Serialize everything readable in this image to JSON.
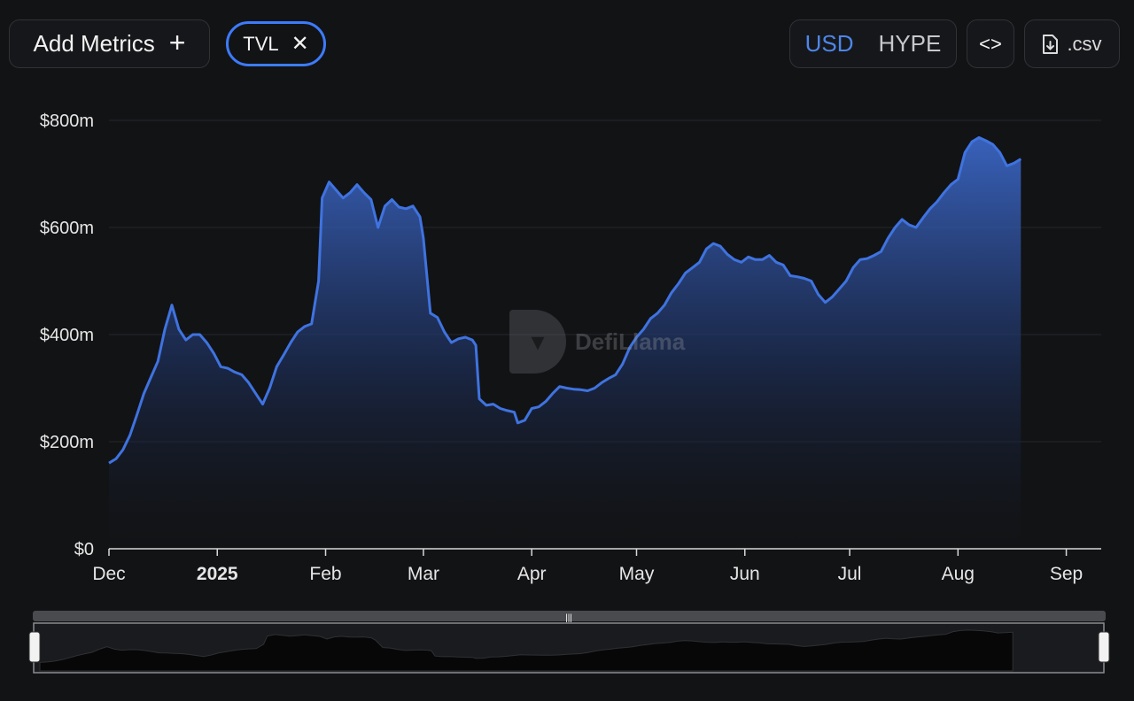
{
  "toolbar": {
    "add_metrics_label": "Add Metrics",
    "add_icon": "+",
    "metric_chip": "TVL",
    "remove_icon": "✕",
    "currency_options": [
      "USD",
      "HYPE"
    ],
    "currency_selected": "USD",
    "embed_icon": "<>",
    "csv_label": ".csv"
  },
  "watermark": {
    "text": "DefiLlama"
  },
  "colors": {
    "accent": "#3d7bfd",
    "line": "#3f73e0",
    "background": "#121315"
  },
  "chart_data": {
    "type": "area",
    "title": "",
    "xlabel": "",
    "ylabel": "",
    "ylim": [
      0,
      800
    ],
    "y_ticks": [
      "$0",
      "$200m",
      "$400m",
      "$600m",
      "$800m"
    ],
    "y_tick_values": [
      0,
      200,
      400,
      600,
      800
    ],
    "x_ticks": [
      "Dec",
      "2025",
      "Feb",
      "Mar",
      "Apr",
      "May",
      "Jun",
      "Jul",
      "Aug",
      "Sep"
    ],
    "x_tick_dates": [
      "2024-12-01",
      "2025-01-01",
      "2025-02-01",
      "2025-03-01",
      "2025-04-01",
      "2025-05-01",
      "2025-06-01",
      "2025-07-01",
      "2025-08-01",
      "2025-09-01"
    ],
    "x_range": [
      "2024-12-01",
      "2025-09-11"
    ],
    "grid": true,
    "legend": false,
    "series": [
      {
        "name": "TVL",
        "unit": "USD millions",
        "points": [
          [
            "2024-12-01",
            160
          ],
          [
            "2024-12-03",
            168
          ],
          [
            "2024-12-05",
            185
          ],
          [
            "2024-12-07",
            212
          ],
          [
            "2024-12-09",
            250
          ],
          [
            "2024-12-11",
            290
          ],
          [
            "2024-12-13",
            320
          ],
          [
            "2024-12-15",
            350
          ],
          [
            "2024-12-17",
            410
          ],
          [
            "2024-12-19",
            455
          ],
          [
            "2024-12-21",
            410
          ],
          [
            "2024-12-23",
            390
          ],
          [
            "2024-12-25",
            400
          ],
          [
            "2024-12-27",
            400
          ],
          [
            "2024-12-29",
            385
          ],
          [
            "2024-12-31",
            365
          ],
          [
            "2025-01-02",
            340
          ],
          [
            "2025-01-04",
            337
          ],
          [
            "2025-01-06",
            330
          ],
          [
            "2025-01-08",
            325
          ],
          [
            "2025-01-10",
            310
          ],
          [
            "2025-01-12",
            290
          ],
          [
            "2025-01-14",
            270
          ],
          [
            "2025-01-16",
            300
          ],
          [
            "2025-01-18",
            340
          ],
          [
            "2025-01-20",
            362
          ],
          [
            "2025-01-22",
            385
          ],
          [
            "2025-01-24",
            405
          ],
          [
            "2025-01-26",
            415
          ],
          [
            "2025-01-28",
            420
          ],
          [
            "2025-01-30",
            500
          ],
          [
            "2025-01-31",
            655
          ],
          [
            "2025-02-02",
            685
          ],
          [
            "2025-02-04",
            670
          ],
          [
            "2025-02-06",
            655
          ],
          [
            "2025-02-08",
            665
          ],
          [
            "2025-02-10",
            680
          ],
          [
            "2025-02-12",
            665
          ],
          [
            "2025-02-14",
            652
          ],
          [
            "2025-02-16",
            600
          ],
          [
            "2025-02-18",
            640
          ],
          [
            "2025-02-20",
            652
          ],
          [
            "2025-02-22",
            638
          ],
          [
            "2025-02-24",
            635
          ],
          [
            "2025-02-26",
            640
          ],
          [
            "2025-02-28",
            620
          ],
          [
            "2025-03-01",
            580
          ],
          [
            "2025-03-03",
            440
          ],
          [
            "2025-03-05",
            432
          ],
          [
            "2025-03-07",
            405
          ],
          [
            "2025-03-09",
            385
          ],
          [
            "2025-03-11",
            392
          ],
          [
            "2025-03-13",
            395
          ],
          [
            "2025-03-15",
            390
          ],
          [
            "2025-03-16",
            380
          ],
          [
            "2025-03-17",
            280
          ],
          [
            "2025-03-19",
            268
          ],
          [
            "2025-03-21",
            270
          ],
          [
            "2025-03-23",
            262
          ],
          [
            "2025-03-25",
            258
          ],
          [
            "2025-03-27",
            255
          ],
          [
            "2025-03-28",
            235
          ],
          [
            "2025-03-30",
            240
          ],
          [
            "2025-04-01",
            262
          ],
          [
            "2025-04-03",
            265
          ],
          [
            "2025-04-05",
            275
          ],
          [
            "2025-04-07",
            290
          ],
          [
            "2025-04-09",
            303
          ],
          [
            "2025-04-11",
            300
          ],
          [
            "2025-04-13",
            298
          ],
          [
            "2025-04-15",
            297
          ],
          [
            "2025-04-17",
            295
          ],
          [
            "2025-04-19",
            300
          ],
          [
            "2025-04-21",
            310
          ],
          [
            "2025-04-23",
            318
          ],
          [
            "2025-04-25",
            325
          ],
          [
            "2025-04-27",
            345
          ],
          [
            "2025-04-29",
            375
          ],
          [
            "2025-05-01",
            395
          ],
          [
            "2025-05-03",
            410
          ],
          [
            "2025-05-05",
            430
          ],
          [
            "2025-05-07",
            440
          ],
          [
            "2025-05-09",
            455
          ],
          [
            "2025-05-11",
            478
          ],
          [
            "2025-05-13",
            495
          ],
          [
            "2025-05-15",
            515
          ],
          [
            "2025-05-17",
            525
          ],
          [
            "2025-05-19",
            535
          ],
          [
            "2025-05-21",
            560
          ],
          [
            "2025-05-23",
            570
          ],
          [
            "2025-05-25",
            565
          ],
          [
            "2025-05-27",
            550
          ],
          [
            "2025-05-29",
            540
          ],
          [
            "2025-05-31",
            535
          ],
          [
            "2025-06-02",
            545
          ],
          [
            "2025-06-04",
            540
          ],
          [
            "2025-06-06",
            540
          ],
          [
            "2025-06-08",
            548
          ],
          [
            "2025-06-10",
            535
          ],
          [
            "2025-06-12",
            530
          ],
          [
            "2025-06-14",
            510
          ],
          [
            "2025-06-16",
            508
          ],
          [
            "2025-06-18",
            505
          ],
          [
            "2025-06-20",
            500
          ],
          [
            "2025-06-22",
            475
          ],
          [
            "2025-06-24",
            460
          ],
          [
            "2025-06-26",
            470
          ],
          [
            "2025-06-28",
            485
          ],
          [
            "2025-06-30",
            500
          ],
          [
            "2025-07-02",
            525
          ],
          [
            "2025-07-04",
            540
          ],
          [
            "2025-07-06",
            542
          ],
          [
            "2025-07-08",
            548
          ],
          [
            "2025-07-10",
            555
          ],
          [
            "2025-07-12",
            580
          ],
          [
            "2025-07-14",
            600
          ],
          [
            "2025-07-16",
            615
          ],
          [
            "2025-07-18",
            605
          ],
          [
            "2025-07-20",
            600
          ],
          [
            "2025-07-22",
            618
          ],
          [
            "2025-07-24",
            635
          ],
          [
            "2025-07-26",
            648
          ],
          [
            "2025-07-28",
            665
          ],
          [
            "2025-07-30",
            680
          ],
          [
            "2025-08-01",
            690
          ],
          [
            "2025-08-03",
            740
          ],
          [
            "2025-08-05",
            760
          ],
          [
            "2025-08-07",
            768
          ],
          [
            "2025-08-09",
            762
          ],
          [
            "2025-08-11",
            755
          ],
          [
            "2025-08-13",
            740
          ],
          [
            "2025-08-15",
            715
          ],
          [
            "2025-08-17",
            720
          ],
          [
            "2025-08-19",
            728
          ]
        ]
      }
    ]
  }
}
